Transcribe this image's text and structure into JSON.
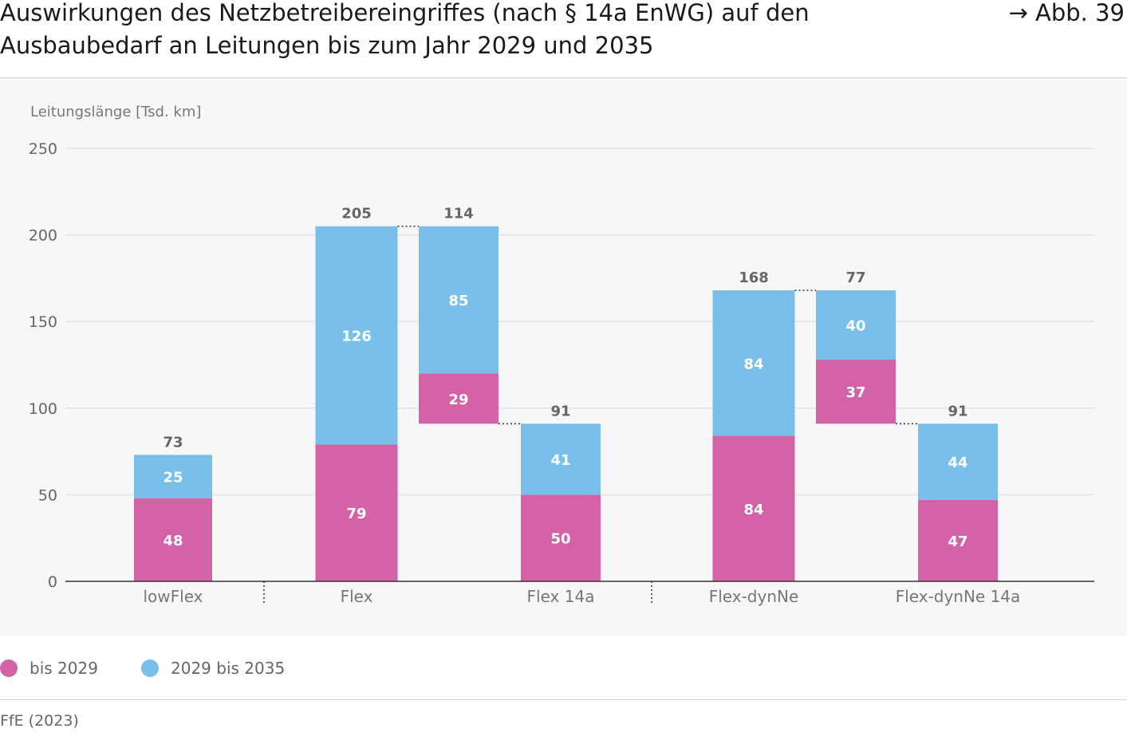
{
  "header": {
    "title_line1": "Auswirkungen des Netzbetreibereingriffes (nach § 14a EnWG) auf den",
    "title_line2": "Ausbaubedarf an Leitungen bis zum Jahr 2029 und 2035",
    "figure_ref": "→ Abb. 39"
  },
  "legend": {
    "items": [
      {
        "label": "bis 2029",
        "color": "#d462a6"
      },
      {
        "label": "2029 bis 2035",
        "color": "#78bfea"
      }
    ]
  },
  "source": "FfE (2023)",
  "chart_data": {
    "type": "bar",
    "subtype": "stacked-waterfall",
    "ylabel": "Leitungslänge [Tsd. km]",
    "ylim": [
      0,
      250
    ],
    "yticks": [
      0,
      50,
      100,
      150,
      200,
      250
    ],
    "grid": true,
    "legend_position": "bottom-left",
    "colors": {
      "bis_2029": "#d462a6",
      "2029_bis_2035": "#78bfea"
    },
    "groups": [
      {
        "category": "lowFlex",
        "bars": [
          {
            "kind": "stack",
            "bis_2029": 48,
            "2029_bis_2035": 25,
            "total_label": "73"
          }
        ]
      },
      {
        "category": "Flex",
        "bars": [
          {
            "kind": "stack",
            "bis_2029": 79,
            "2029_bis_2035": 126,
            "total_label": "205"
          }
        ]
      },
      {
        "category": "",
        "bars": [
          {
            "kind": "reduction",
            "from": 205,
            "bis_2029": 29,
            "2029_bis_2035": 85,
            "total_label": "114"
          }
        ]
      },
      {
        "category": "Flex 14a",
        "bars": [
          {
            "kind": "stack",
            "bis_2029": 50,
            "2029_bis_2035": 41,
            "total_label": "91"
          }
        ]
      },
      {
        "category": "Flex-dynNe",
        "bars": [
          {
            "kind": "stack",
            "bis_2029": 84,
            "2029_bis_2035": 84,
            "total_label": "168"
          }
        ]
      },
      {
        "category": "",
        "bars": [
          {
            "kind": "reduction",
            "from": 168,
            "bis_2029": 37,
            "2029_bis_2035": 40,
            "total_label": "77"
          }
        ]
      },
      {
        "category": "Flex-dynNe 14a",
        "bars": [
          {
            "kind": "stack",
            "bis_2029": 47,
            "2029_bis_2035": 44,
            "total_label": "91"
          }
        ]
      }
    ]
  }
}
